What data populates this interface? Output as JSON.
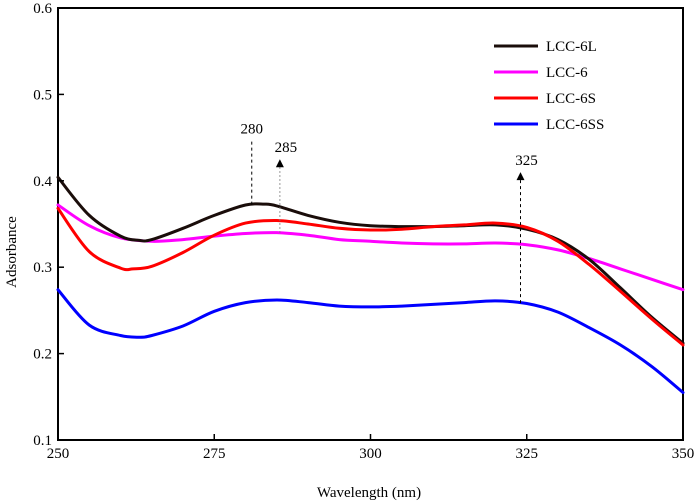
{
  "chart_data": {
    "type": "line",
    "xlabel": "Wavelength (nm)",
    "ylabel": "Adsorbance",
    "xlim": [
      250,
      350
    ],
    "ylim": [
      0.1,
      0.6
    ],
    "x_ticks": [
      "250",
      "275",
      "300",
      "325",
      "350"
    ],
    "y_ticks": [
      "0.1",
      "0.2",
      "0.3",
      "0.4",
      "0.5",
      "0.6"
    ],
    "grid": false,
    "legend_position": "top-right",
    "series": [
      {
        "name": "LCC-6L",
        "color": "#1a0d0a",
        "x": [
          250,
          255,
          260,
          263,
          265,
          270,
          275,
          280,
          283,
          285,
          290,
          295,
          300,
          305,
          310,
          315,
          320,
          325,
          330,
          335,
          340,
          345,
          350
        ],
        "y": [
          0.404,
          0.36,
          0.336,
          0.331,
          0.332,
          0.345,
          0.36,
          0.372,
          0.373,
          0.371,
          0.36,
          0.352,
          0.348,
          0.347,
          0.347,
          0.348,
          0.349,
          0.344,
          0.332,
          0.309,
          0.276,
          0.242,
          0.212
        ]
      },
      {
        "name": "LCC-6",
        "color": "#ff00ff",
        "x": [
          250,
          255,
          260,
          265,
          270,
          275,
          280,
          285,
          290,
          295,
          300,
          305,
          310,
          315,
          320,
          325,
          330,
          335,
          340,
          345,
          350
        ],
        "y": [
          0.372,
          0.348,
          0.334,
          0.33,
          0.332,
          0.336,
          0.339,
          0.34,
          0.337,
          0.332,
          0.33,
          0.328,
          0.327,
          0.327,
          0.328,
          0.326,
          0.32,
          0.31,
          0.298,
          0.286,
          0.274
        ]
      },
      {
        "name": "LCC-6S",
        "color": "#ff0000",
        "x": [
          250,
          255,
          260,
          262,
          265,
          270,
          275,
          280,
          285,
          290,
          295,
          300,
          305,
          310,
          315,
          320,
          325,
          330,
          335,
          340,
          345,
          350
        ],
        "y": [
          0.368,
          0.318,
          0.299,
          0.298,
          0.301,
          0.317,
          0.337,
          0.351,
          0.354,
          0.35,
          0.345,
          0.343,
          0.344,
          0.347,
          0.349,
          0.351,
          0.346,
          0.33,
          0.303,
          0.272,
          0.24,
          0.21
        ]
      },
      {
        "name": "LCC-6SS",
        "color": "#0000ff",
        "x": [
          250,
          255,
          260,
          263,
          265,
          270,
          275,
          280,
          285,
          290,
          295,
          300,
          305,
          310,
          315,
          320,
          325,
          330,
          335,
          340,
          345,
          350
        ],
        "y": [
          0.274,
          0.233,
          0.221,
          0.219,
          0.221,
          0.232,
          0.249,
          0.259,
          0.262,
          0.259,
          0.255,
          0.254,
          0.255,
          0.257,
          0.259,
          0.261,
          0.258,
          0.248,
          0.23,
          0.21,
          0.185,
          0.155
        ]
      }
    ],
    "annotations": [
      {
        "label": "280",
        "x": 281,
        "y_top": 0.45,
        "y_bottom": 0.372,
        "arrow": false,
        "line": "dashed"
      },
      {
        "label": "285",
        "x": 285.5,
        "y_top": 0.425,
        "y_bottom": 0.34,
        "arrow": true,
        "line": "dotted"
      },
      {
        "label": "325",
        "x": 324,
        "y_top": 0.41,
        "y_bottom": 0.256,
        "arrow": true,
        "line": "dashed"
      }
    ]
  }
}
